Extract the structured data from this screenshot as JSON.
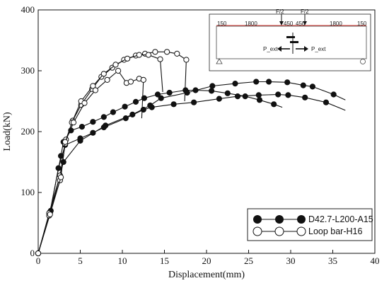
{
  "chart_data": {
    "type": "line",
    "xlabel": "Displacement(mm)",
    "ylabel": "Load(kN)",
    "xlim": [
      0,
      40
    ],
    "ylim": [
      0,
      400
    ],
    "xticks": [
      0,
      5,
      10,
      15,
      20,
      25,
      30,
      35,
      40
    ],
    "yticks": [
      0,
      100,
      200,
      300,
      400
    ],
    "grid": false,
    "legend_position": "bottom-right",
    "series": [
      {
        "name": "D42.7-L200-A15",
        "marker": "filled-circle",
        "color": "#111111",
        "curves": [
          [
            [
              0,
              0
            ],
            [
              1.4,
              68
            ],
            [
              2.7,
              160
            ],
            [
              3.0,
              183
            ],
            [
              3.9,
              202
            ],
            [
              5.2,
              208
            ],
            [
              6.5,
              216
            ],
            [
              7.8,
              224
            ],
            [
              8.9,
              232
            ],
            [
              10.3,
              241
            ],
            [
              11.6,
              249
            ],
            [
              12.6,
              255
            ],
            [
              14.2,
              261
            ],
            [
              15.6,
              264
            ],
            [
              17.5,
              268
            ],
            [
              18.7,
              268
            ],
            [
              20.6,
              267
            ],
            [
              22.5,
              263
            ],
            [
              24.6,
              258
            ],
            [
              26.3,
              252
            ],
            [
              28.0,
              245
            ],
            [
              29,
              240
            ]
          ],
          [
            [
              0,
              0
            ],
            [
              1.4,
              66
            ],
            [
              2.4,
              140
            ],
            [
              3.2,
              178
            ],
            [
              5.0,
              189
            ],
            [
              6.5,
              198
            ],
            [
              7.8,
              207
            ],
            [
              10.4,
              222
            ],
            [
              12.5,
              236
            ],
            [
              13.5,
              240
            ],
            [
              16.1,
              245
            ],
            [
              18.5,
              248
            ],
            [
              21.5,
              254
            ],
            [
              23.7,
              258
            ],
            [
              26.2,
              260
            ],
            [
              28.5,
              261
            ],
            [
              29.7,
              260
            ],
            [
              31.7,
              256
            ],
            [
              34.2,
              248
            ],
            [
              36.5,
              235
            ]
          ],
          [
            [
              0,
              0
            ],
            [
              1.5,
              70
            ],
            [
              3.0,
              150
            ],
            [
              5.0,
              185
            ],
            [
              8.0,
              210
            ],
            [
              11.2,
              228
            ],
            [
              13.3,
              243
            ],
            [
              14.6,
              255
            ],
            [
              17.7,
              264
            ],
            [
              20.7,
              275
            ],
            [
              23.4,
              279
            ],
            [
              25.9,
              282
            ],
            [
              27.4,
              282
            ],
            [
              29.6,
              281
            ],
            [
              31.5,
              276
            ],
            [
              32.6,
              274
            ],
            [
              35.1,
              261
            ],
            [
              36.5,
              252
            ]
          ]
        ]
      },
      {
        "name": "Loop bar-H16",
        "marker": "open-circle",
        "color": "#111111",
        "curves": [
          [
            [
              0,
              0
            ],
            [
              1.3,
              66
            ],
            [
              2.6,
              128
            ],
            [
              3.3,
              187
            ],
            [
              4.1,
              218
            ],
            [
              5.1,
              244
            ],
            [
              6.4,
              270
            ],
            [
              7.5,
              290
            ],
            [
              8.8,
              305
            ],
            [
              10.2,
              318
            ],
            [
              11.6,
              325
            ],
            [
              12.7,
              328
            ],
            [
              13.9,
              331
            ],
            [
              15.3,
              331
            ],
            [
              16.5,
              328
            ],
            [
              17.6,
              318
            ],
            [
              17.4,
              250
            ]
          ],
          [
            [
              0,
              0
            ],
            [
              1.3,
              62
            ],
            [
              2.6,
              120
            ],
            [
              3.2,
              180
            ],
            [
              4.0,
              215
            ],
            [
              5.1,
              250
            ],
            [
              6.5,
              275
            ],
            [
              7.8,
              295
            ],
            [
              9.2,
              310
            ],
            [
              10.6,
              320
            ],
            [
              12.0,
              326
            ],
            [
              13.1,
              326
            ],
            [
              14.5,
              319
            ],
            [
              14.8,
              265
            ]
          ],
          [
            [
              0,
              0
            ],
            [
              1.4,
              64
            ],
            [
              2.7,
              125
            ],
            [
              3.2,
              183
            ],
            [
              4.2,
              215
            ],
            [
              5.5,
              247
            ],
            [
              6.8,
              268
            ],
            [
              8.2,
              285
            ],
            [
              9.5,
              300
            ],
            [
              10.5,
              280
            ],
            [
              11.0,
              282
            ],
            [
              12.0,
              287
            ],
            [
              12.5,
              285
            ],
            [
              12.3,
              222
            ]
          ]
        ]
      }
    ],
    "inset": {
      "labels": [
        "F/2",
        "F/2",
        "150",
        "1800",
        "450",
        "450",
        "1800",
        "150",
        "P_ext",
        "P_ext"
      ]
    }
  }
}
